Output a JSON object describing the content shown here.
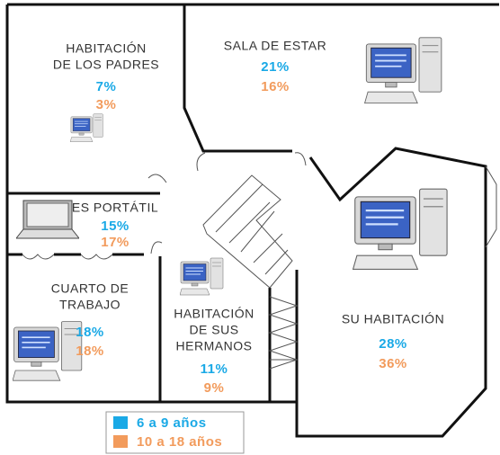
{
  "rooms": [
    {
      "name": [
        "HABITACIÓN",
        "DE LOS PADRES"
      ],
      "group_1": "7%",
      "group_2": "3%"
    },
    {
      "name": [
        "SALA DE ESTAR"
      ],
      "group_1": "21%",
      "group_2": "16%"
    },
    {
      "name": [
        "ES PORTÁTIL"
      ],
      "group_1": "15%",
      "group_2": "17%"
    },
    {
      "name": [
        "CUARTO DE",
        "TRABAJO"
      ],
      "group_1": "18%",
      "group_2": "18%"
    },
    {
      "name": [
        "HABITACIÓN",
        "DE SUS",
        "HERMANOS"
      ],
      "group_1": "11%",
      "group_2": "9%"
    },
    {
      "name": [
        "SU HABITACIÓN"
      ],
      "group_1": "28%",
      "group_2": "36%"
    }
  ],
  "legend": {
    "group_1": {
      "label": "6 a 9 años",
      "color": "#1aa9e6"
    },
    "group_2": {
      "label": "10 a 18 años",
      "color": "#f29b5c"
    }
  }
}
